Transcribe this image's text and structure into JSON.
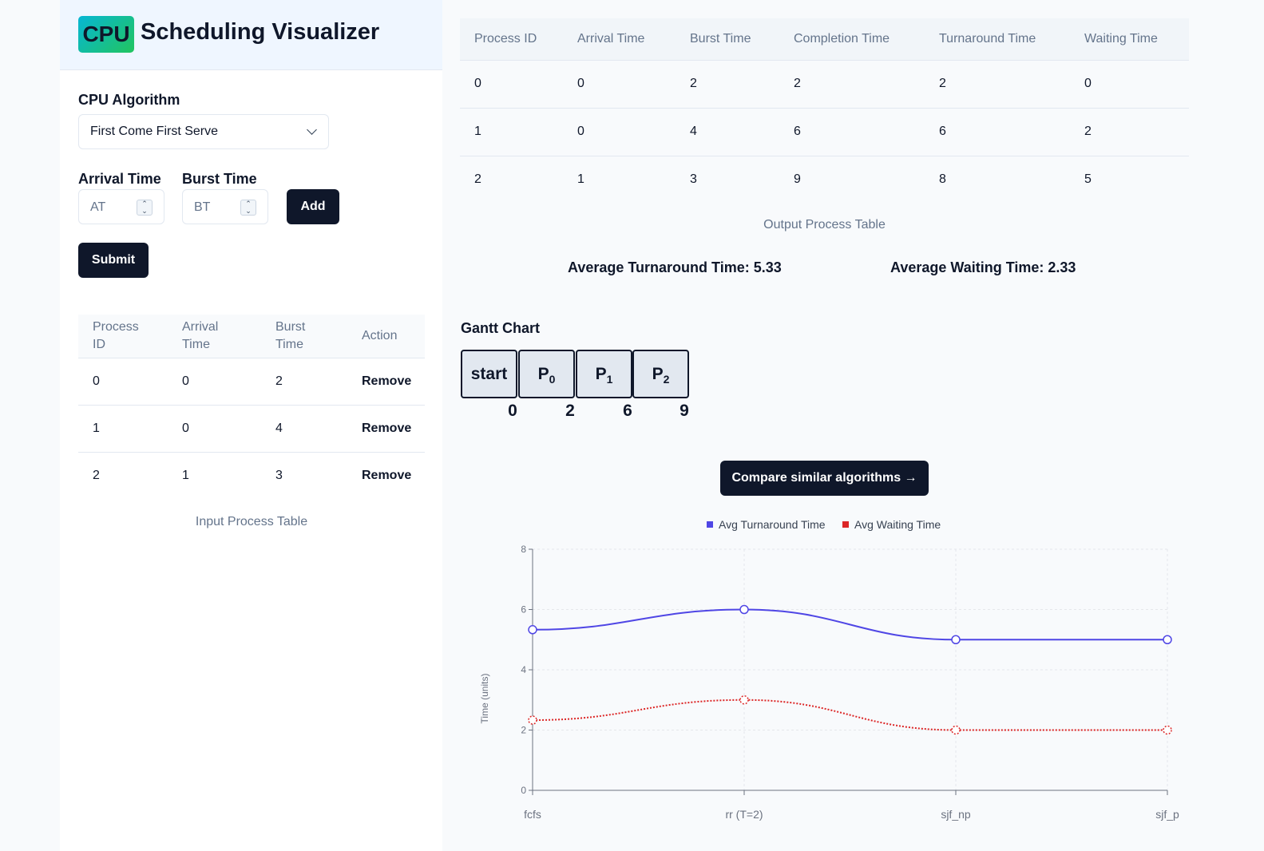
{
  "brand": {
    "badge": "CPU",
    "title": "Scheduling Visualizer"
  },
  "form": {
    "algorithm_label": "CPU Algorithm",
    "algorithm_value": "First Come First Serve",
    "arrival_label": "Arrival Time",
    "arrival_placeholder": "AT",
    "burst_label": "Burst Time",
    "burst_placeholder": "BT",
    "add_label": "Add",
    "submit_label": "Submit"
  },
  "input_table": {
    "headers": [
      "Process ID",
      "Arrival Time",
      "Burst Time",
      "Action"
    ],
    "rows": [
      {
        "pid": "0",
        "at": "0",
        "bt": "2",
        "action": "Remove"
      },
      {
        "pid": "1",
        "at": "0",
        "bt": "4",
        "action": "Remove"
      },
      {
        "pid": "2",
        "at": "1",
        "bt": "3",
        "action": "Remove"
      }
    ],
    "caption": "Input Process Table"
  },
  "output_table": {
    "headers": [
      "Process ID",
      "Arrival Time",
      "Burst Time",
      "Completion Time",
      "Turnaround Time",
      "Waiting Time"
    ],
    "rows": [
      [
        "0",
        "0",
        "2",
        "2",
        "2",
        "0"
      ],
      [
        "1",
        "0",
        "4",
        "6",
        "6",
        "2"
      ],
      [
        "2",
        "1",
        "3",
        "9",
        "8",
        "5"
      ]
    ],
    "caption": "Output Process Table"
  },
  "averages": {
    "turnaround": "Average Turnaround Time: 5.33",
    "waiting": "Average Waiting Time: 2.33"
  },
  "gantt": {
    "title": "Gantt Chart",
    "start_label": "start",
    "blocks": [
      {
        "name": "P",
        "sub": "0"
      },
      {
        "name": "P",
        "sub": "1"
      },
      {
        "name": "P",
        "sub": "2"
      }
    ],
    "ticks": [
      "0",
      "2",
      "6",
      "9"
    ]
  },
  "compare_label": "Compare similar algorithms →",
  "chart_data": {
    "type": "line",
    "categories": [
      "fcfs",
      "rr (T=2)",
      "sjf_np",
      "sjf_p"
    ],
    "series": [
      {
        "name": "Avg Turnaround Time",
        "values": [
          5.33,
          6,
          5,
          5
        ],
        "color": "#4f46e5",
        "dashed": false
      },
      {
        "name": "Avg Waiting Time",
        "values": [
          2.33,
          3,
          2,
          2
        ],
        "color": "#dc2626",
        "dashed": true
      }
    ],
    "ylabel": "Time (units)",
    "xlabel": "",
    "ylim": [
      0,
      8
    ],
    "yticks": [
      0,
      2,
      4,
      6,
      8
    ],
    "legend": "top",
    "grid": true
  }
}
